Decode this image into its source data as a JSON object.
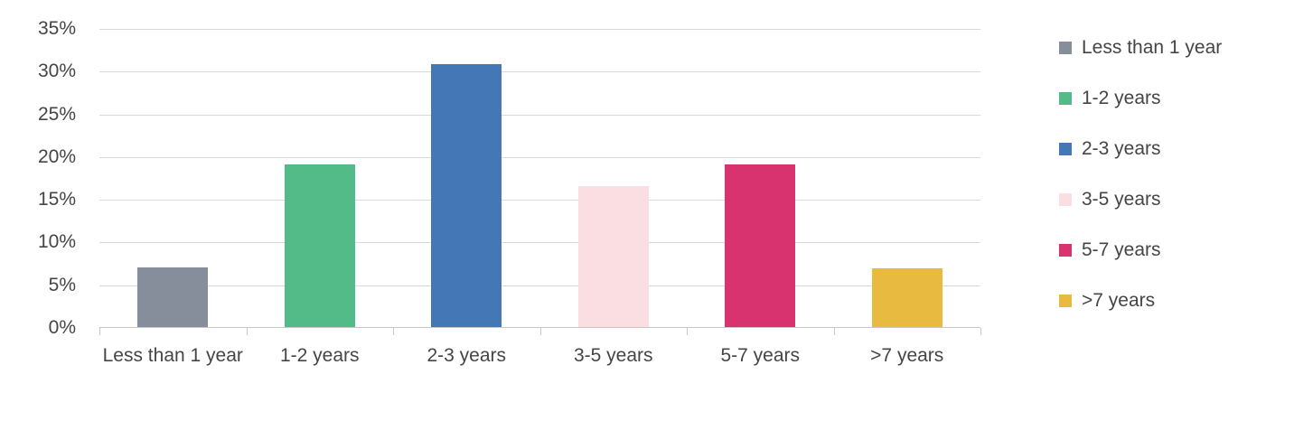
{
  "chart_data": {
    "type": "bar",
    "categories": [
      "Less than 1 year",
      "1-2 years",
      "2-3 years",
      "3-5 years",
      "5-7 years",
      ">7 years"
    ],
    "values": [
      7,
      19,
      30.8,
      16.5,
      19,
      6.9
    ],
    "value_unit": "%",
    "title": "",
    "xlabel": "",
    "ylabel": "",
    "ylim": [
      0,
      35
    ],
    "yticks": [
      0,
      5,
      10,
      15,
      20,
      25,
      30,
      35
    ],
    "ytick_labels": [
      "0%",
      "5%",
      "10%",
      "15%",
      "20%",
      "25%",
      "30%",
      "35%"
    ],
    "grid": true,
    "legend_position": "right",
    "legend": [
      {
        "label": "Less than 1 year",
        "color": "#868E9C"
      },
      {
        "label": "1-2 years",
        "color": "#52BB87"
      },
      {
        "label": "2-3 years",
        "color": "#4377B5"
      },
      {
        "label": "3-5 years",
        "color": "#FBDEE1"
      },
      {
        "label": "5-7 years",
        "color": "#D8336F"
      },
      {
        "label": ">7 years",
        "color": "#E8BA3F"
      }
    ],
    "bar_colors": [
      "#868E9C",
      "#52BB87",
      "#4377B5",
      "#FBDEE1",
      "#D8336F",
      "#E8BA3F"
    ]
  },
  "colors": {
    "background": "#ffffff",
    "gridline": "#d9d9d9",
    "axis_line": "#c9c7c7",
    "text": "#454545"
  }
}
